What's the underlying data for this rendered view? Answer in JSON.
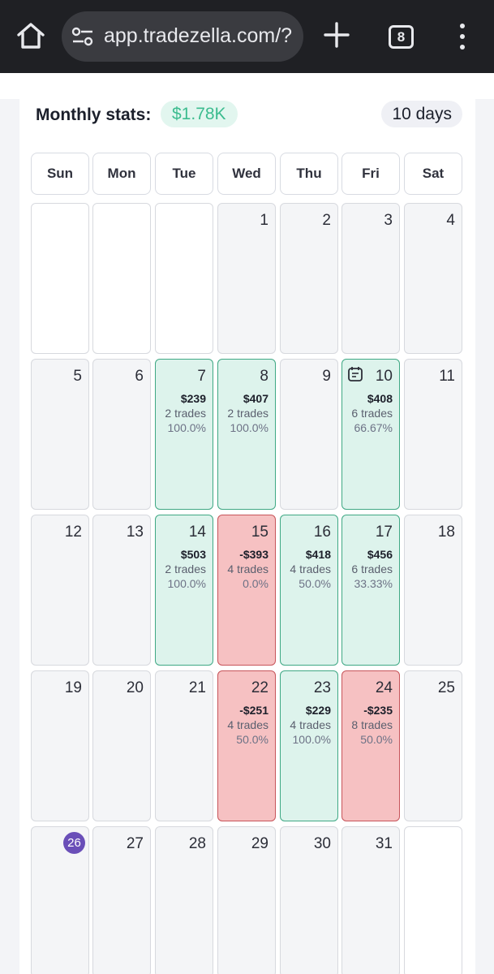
{
  "browser": {
    "url": "app.tradezella.com/?",
    "tab_count": "8"
  },
  "stats": {
    "title": "Monthly stats:",
    "amount": "$1.78K",
    "days": "10 days"
  },
  "weekdays": [
    "Sun",
    "Mon",
    "Tue",
    "Wed",
    "Thu",
    "Fri",
    "Sat"
  ],
  "days": [
    {
      "type": "blank"
    },
    {
      "type": "blank"
    },
    {
      "type": "blank"
    },
    {
      "day": "1"
    },
    {
      "day": "2"
    },
    {
      "day": "3"
    },
    {
      "day": "4"
    },
    {
      "day": "5"
    },
    {
      "day": "6"
    },
    {
      "day": "7",
      "status": "win",
      "pnl": "$239",
      "trades": "2 trades",
      "rate": "100.0%"
    },
    {
      "day": "8",
      "status": "win",
      "pnl": "$407",
      "trades": "2 trades",
      "rate": "100.0%"
    },
    {
      "day": "9"
    },
    {
      "day": "10",
      "status": "win",
      "pnl": "$408",
      "trades": "6 trades",
      "rate": "66.67%",
      "note": true
    },
    {
      "day": "11"
    },
    {
      "day": "12"
    },
    {
      "day": "13"
    },
    {
      "day": "14",
      "status": "win",
      "pnl": "$503",
      "trades": "2 trades",
      "rate": "100.0%"
    },
    {
      "day": "15",
      "status": "loss",
      "pnl": "-$393",
      "trades": "4 trades",
      "rate": "0.0%"
    },
    {
      "day": "16",
      "status": "win",
      "pnl": "$418",
      "trades": "4 trades",
      "rate": "50.0%"
    },
    {
      "day": "17",
      "status": "win",
      "pnl": "$456",
      "trades": "6 trades",
      "rate": "33.33%"
    },
    {
      "day": "18"
    },
    {
      "day": "19"
    },
    {
      "day": "20"
    },
    {
      "day": "21"
    },
    {
      "day": "22",
      "status": "loss",
      "pnl": "-$251",
      "trades": "4 trades",
      "rate": "50.0%"
    },
    {
      "day": "23",
      "status": "win",
      "pnl": "$229",
      "trades": "4 trades",
      "rate": "100.0%"
    },
    {
      "day": "24",
      "status": "loss",
      "pnl": "-$235",
      "trades": "8 trades",
      "rate": "50.0%"
    },
    {
      "day": "25"
    },
    {
      "day": "26",
      "today": true
    },
    {
      "day": "27"
    },
    {
      "day": "28"
    },
    {
      "day": "29"
    },
    {
      "day": "30"
    },
    {
      "day": "31"
    },
    {
      "type": "blank"
    }
  ],
  "colors": {
    "win_bg": "#ddf3ec",
    "loss_bg": "#f6c1c2",
    "today_badge": "#6a4fb8",
    "stats_accent": "#3cbc8f"
  }
}
